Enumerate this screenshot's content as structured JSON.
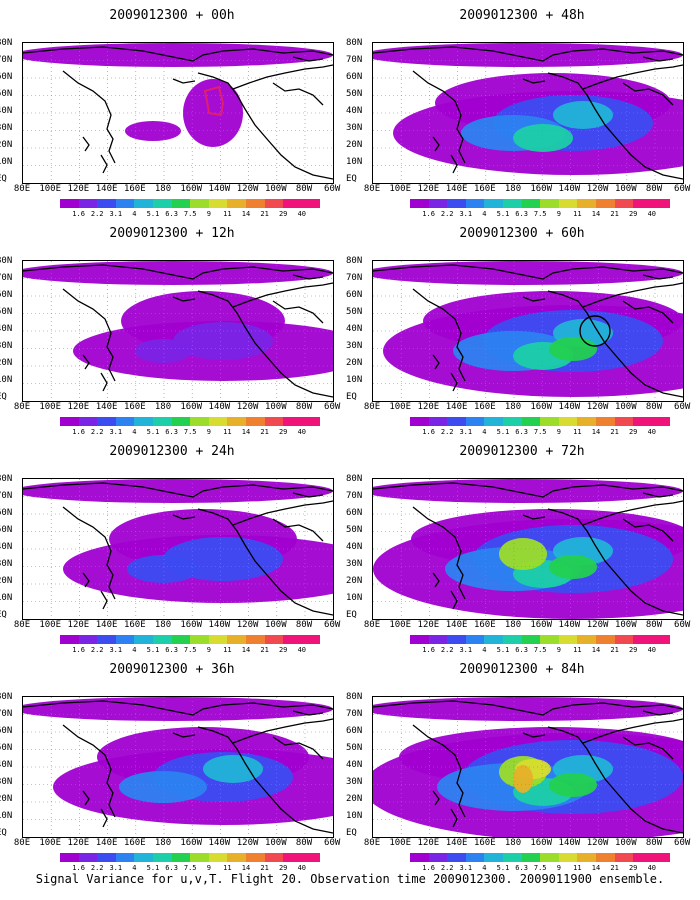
{
  "caption": "Signal Variance for u,v,T. Flight 20. Observation time 2009012300. 2009011900 ensemble.",
  "y_labels": [
    "80N",
    "70N",
    "60N",
    "50N",
    "40N",
    "30N",
    "20N",
    "10N",
    "EQ"
  ],
  "x_labels": [
    "80E",
    "100E",
    "120E",
    "140E",
    "160E",
    "180",
    "160W",
    "140W",
    "120W",
    "100W",
    "80W",
    "60W"
  ],
  "colorbar": {
    "labels": [
      "1.6",
      "2.2",
      "3.1",
      "4",
      "5.1",
      "6.3",
      "7.5",
      "9",
      "11",
      "14",
      "21",
      "29",
      "40"
    ],
    "colors": [
      "#a000d0",
      "#7a24e6",
      "#3c4cf0",
      "#2c82f0",
      "#22b4d8",
      "#1ccfa8",
      "#23d050",
      "#9cdc2a",
      "#d8dc30",
      "#e6b02a",
      "#ee8030",
      "#f04a50",
      "#f0147a"
    ]
  },
  "panels": [
    {
      "title": "2009012300 + 00h",
      "intensity": 0,
      "circle": false,
      "red_contour": true
    },
    {
      "title": "2009012300 + 12h",
      "intensity": 1,
      "circle": false,
      "red_contour": false
    },
    {
      "title": "2009012300 + 24h",
      "intensity": 2,
      "circle": false,
      "red_contour": false
    },
    {
      "title": "2009012300 + 36h",
      "intensity": 3,
      "circle": false,
      "red_contour": false
    },
    {
      "title": "2009012300 + 48h",
      "intensity": 4,
      "circle": false,
      "red_contour": false
    },
    {
      "title": "2009012300 + 60h",
      "intensity": 5,
      "circle": true,
      "red_contour": false
    },
    {
      "title": "2009012300 + 72h",
      "intensity": 6,
      "circle": false,
      "red_contour": false
    },
    {
      "title": "2009012300 + 84h",
      "intensity": 7,
      "circle": false,
      "red_contour": false
    }
  ]
}
